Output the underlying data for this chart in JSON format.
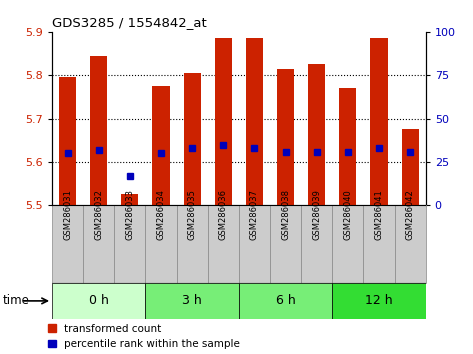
{
  "title": "GDS3285 / 1554842_at",
  "samples": [
    "GSM286031",
    "GSM286032",
    "GSM286033",
    "GSM286034",
    "GSM286035",
    "GSM286036",
    "GSM286037",
    "GSM286038",
    "GSM286039",
    "GSM286040",
    "GSM286041",
    "GSM286042"
  ],
  "transformed_count": [
    5.795,
    5.845,
    5.525,
    5.775,
    5.805,
    5.885,
    5.885,
    5.815,
    5.825,
    5.77,
    5.885,
    5.675
  ],
  "percentile_rank": [
    30,
    32,
    17,
    30,
    33,
    35,
    33,
    31,
    31,
    31,
    33,
    31
  ],
  "bar_bottom": 5.5,
  "ylim_left": [
    5.5,
    5.9
  ],
  "ylim_right": [
    0,
    100
  ],
  "yticks_left": [
    5.5,
    5.6,
    5.7,
    5.8,
    5.9
  ],
  "yticks_right": [
    0,
    25,
    50,
    75,
    100
  ],
  "groups": [
    {
      "label": "0 h",
      "start": 0,
      "end": 3,
      "color": "#ccffcc"
    },
    {
      "label": "3 h",
      "start": 3,
      "end": 6,
      "color": "#77ee77"
    },
    {
      "label": "6 h",
      "start": 6,
      "end": 9,
      "color": "#77ee77"
    },
    {
      "label": "12 h",
      "start": 9,
      "end": 12,
      "color": "#33dd33"
    }
  ],
  "bar_color": "#cc2200",
  "dot_color": "#0000bb",
  "axis_left_color": "#cc2200",
  "axis_right_color": "#0000bb",
  "legend_red_label": "transformed count",
  "legend_blue_label": "percentile rank within the sample",
  "time_label": "time",
  "sample_box_color": "#cccccc",
  "sample_box_edge": "#888888"
}
